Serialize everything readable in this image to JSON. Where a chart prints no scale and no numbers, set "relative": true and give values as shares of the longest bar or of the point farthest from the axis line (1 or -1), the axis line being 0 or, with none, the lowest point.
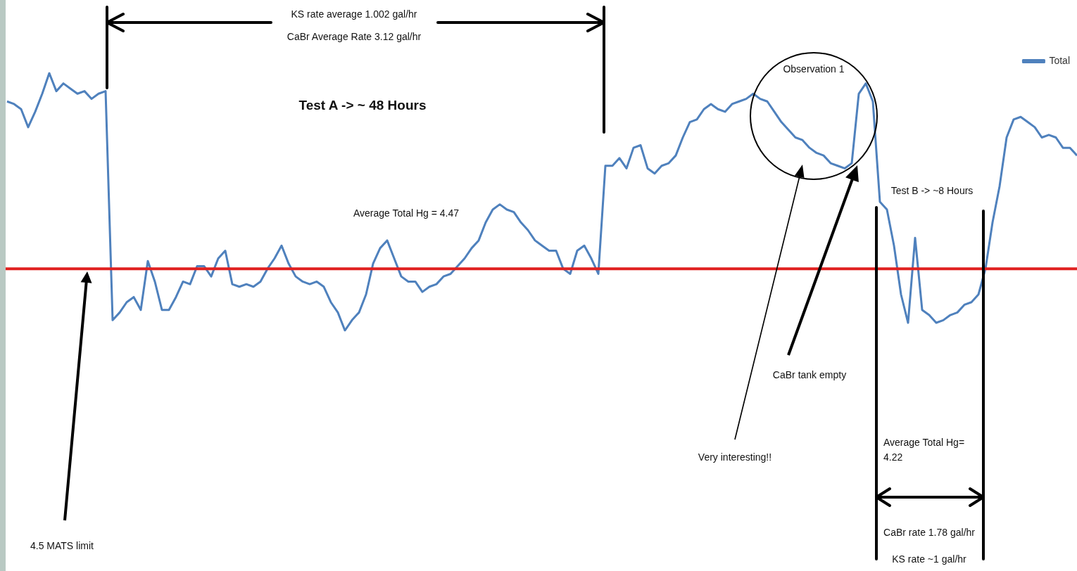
{
  "chart_data": {
    "type": "line",
    "relative": true,
    "grid": false,
    "legend": "top right",
    "marker": "none",
    "line_style": "solid",
    "categories": [
      null,
      null,
      null,
      null,
      null,
      null,
      null,
      null,
      null,
      null,
      null,
      null,
      null,
      null,
      null,
      null,
      null,
      null,
      null,
      null,
      null,
      null,
      null,
      null,
      null,
      null,
      null,
      null,
      null,
      null,
      null,
      null,
      null,
      null,
      null,
      null,
      null,
      null,
      null,
      null,
      null,
      null,
      null,
      null,
      null,
      null,
      null,
      null,
      null,
      null,
      null,
      null,
      null,
      null,
      null,
      null,
      null,
      null,
      null,
      null,
      null,
      null,
      null,
      null,
      null,
      null,
      null,
      null,
      null,
      null,
      null,
      null,
      null,
      null,
      null,
      null,
      null,
      null,
      null,
      null,
      null,
      null,
      null,
      null,
      null,
      null,
      null,
      null,
      null,
      null,
      null,
      null,
      null,
      null,
      null,
      null,
      null,
      null,
      null,
      null,
      null,
      null,
      null,
      null,
      null,
      null,
      null,
      null,
      null,
      null,
      null,
      null,
      null,
      null,
      null,
      null,
      null,
      null,
      null,
      null,
      null,
      null,
      null,
      null,
      null,
      null,
      null,
      null,
      null,
      null,
      null,
      null,
      null,
      null,
      null,
      null,
      null,
      null,
      null,
      null,
      null,
      null,
      null,
      null,
      null,
      null,
      null,
      null,
      null,
      null,
      null,
      null,
      null
    ],
    "series": [
      {
        "name": "Total",
        "color": "#4f81bd",
        "values": [
          0.89,
          0.88,
          0.86,
          0.79,
          0.85,
          0.92,
          1,
          0.93,
          0.96,
          0.94,
          0.92,
          0.93,
          0.9,
          0.92,
          0.93,
          0.04,
          0.07,
          0.11,
          0.13,
          0.08,
          0.27,
          0.19,
          0.08,
          0.08,
          0.13,
          0.19,
          0.18,
          0.25,
          0.25,
          0.21,
          0.28,
          0.31,
          0.18,
          0.17,
          0.18,
          0.17,
          0.19,
          0.24,
          0.28,
          0.33,
          0.26,
          0.21,
          0.19,
          0.18,
          0.19,
          0.17,
          0.11,
          0.07,
          0,
          0.04,
          0.07,
          0.14,
          0.26,
          0.32,
          0.35,
          0.28,
          0.21,
          0.19,
          0.19,
          0.15,
          0.17,
          0.18,
          0.21,
          0.22,
          0.25,
          0.28,
          0.32,
          0.35,
          0.42,
          0.47,
          0.49,
          0.47,
          0.46,
          0.42,
          0.39,
          0.35,
          0.33,
          0.31,
          0.31,
          0.24,
          0.22,
          0.31,
          0.33,
          0.28,
          0.22,
          0.64,
          0.64,
          0.67,
          0.63,
          0.71,
          0.72,
          0.63,
          0.61,
          0.64,
          0.65,
          0.68,
          0.75,
          0.81,
          0.82,
          0.86,
          0.88,
          0.86,
          0.85,
          0.88,
          0.89,
          0.9,
          0.92,
          0.9,
          0.89,
          0.85,
          0.81,
          0.78,
          0.75,
          0.74,
          0.71,
          0.69,
          0.68,
          0.65,
          0.64,
          0.63,
          0.65,
          0.92,
          0.96,
          0.89,
          0.5,
          0.47,
          0.33,
          0.14,
          0.03,
          0.36,
          0.08,
          0.06,
          0.03,
          0.04,
          0.06,
          0.07,
          0.1,
          0.11,
          0.14,
          0.24,
          0.42,
          0.56,
          0.75,
          0.82,
          0.83,
          0.81,
          0.79,
          0.75,
          0.76,
          0.75,
          0.71,
          0.71,
          0.68
        ]
      }
    ],
    "ref_lines": [
      {
        "axis": "y",
        "value": 0.24,
        "color": "#e0201f",
        "line_style": "solid"
      }
    ],
    "annotations": [
      "KS rate average 1.002 gal/hr",
      "CaBr Average Rate 3.12 gal/hr",
      "Test A -> ~ 48 Hours",
      "Average Total Hg = 4.47",
      "Observation 1",
      "Test B -> ~8 Hours",
      "CaBr tank empty",
      "Very interesting!!",
      "Average Total Hg= 4.22",
      "4.5 MATS limit",
      "CaBr rate 1.78 gal/hr",
      "KS rate ~1 gal/hr"
    ]
  }
}
